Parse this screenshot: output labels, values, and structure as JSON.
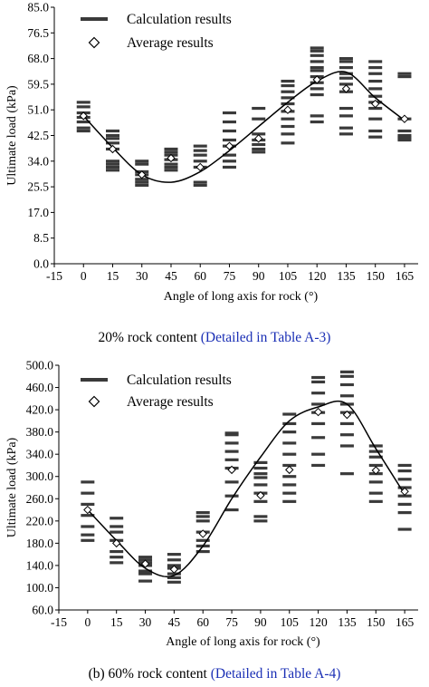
{
  "chart_data": [
    {
      "type": "scatter",
      "title": "",
      "xlabel": "Angle of long axis for rock (°)",
      "ylabel": "Ultimate load (kPa)",
      "xlim": [
        -15,
        172
      ],
      "ylim": [
        0,
        85
      ],
      "x_ticks": [
        -15,
        0,
        15,
        30,
        45,
        60,
        75,
        90,
        105,
        120,
        135,
        150,
        165
      ],
      "y_ticks": [
        "0.0",
        "8.5",
        "17.0",
        "25.5",
        "34.0",
        "42.5",
        "51.0",
        "59.5",
        "68.0",
        "76.5",
        "85.0"
      ],
      "legend": {
        "position": "top-left",
        "items": [
          {
            "label": "Calculation results",
            "marker": "dash"
          },
          {
            "label": "Average results",
            "marker": "diamond"
          }
        ]
      },
      "x": [
        0,
        15,
        30,
        45,
        60,
        75,
        90,
        105,
        120,
        135,
        150,
        165
      ],
      "series": [
        {
          "name": "Calculation results",
          "values": [
            [
              44,
              45,
              47,
              48.5,
              50,
              52,
              53.5
            ],
            [
              31,
              32,
              33,
              34,
              38,
              40,
              41.5,
              42.5,
              44
            ],
            [
              26,
              27,
              28,
              29.5,
              30.5,
              33,
              34
            ],
            [
              31,
              32,
              33,
              34.5,
              36,
              37,
              38
            ],
            [
              26,
              27,
              32,
              34,
              36,
              37.5,
              39
            ],
            [
              32,
              34,
              36,
              39,
              41,
              44,
              47,
              50
            ],
            [
              37,
              38,
              39.5,
              41,
              43,
              48,
              51.5
            ],
            [
              40,
              43,
              45.5,
              48,
              50.5,
              53,
              55,
              57,
              59,
              60.5
            ],
            [
              47,
              49,
              56,
              58,
              60,
              62,
              64,
              65,
              67,
              69,
              70.5,
              71.5
            ],
            [
              43,
              45,
              49,
              51.5,
              57,
              59.5,
              61.5,
              63,
              65,
              67,
              68
            ],
            [
              42,
              44,
              48,
              51.5,
              53.5,
              55.5,
              58,
              60.5,
              63,
              65,
              67
            ],
            [
              41,
              41.5,
              42,
              42.5,
              44,
              48,
              62,
              63
            ]
          ]
        },
        {
          "name": "Average results",
          "values": [
            49,
            38,
            29.5,
            35,
            32,
            39,
            41.5,
            51,
            61,
            58,
            53,
            48
          ]
        },
        {
          "name": "Fitted curve",
          "values": [
            49,
            38.5,
            29.5,
            27,
            30.5,
            37.5,
            45.5,
            53.5,
            60.5,
            63.5,
            55,
            47.5
          ]
        }
      ]
    },
    {
      "type": "scatter",
      "title": "",
      "xlabel": "Angle of long axis for rock (°)",
      "ylabel": "Ultimate load (kPa)",
      "xlim": [
        -15,
        172
      ],
      "ylim": [
        60,
        500
      ],
      "x_ticks": [
        -15,
        0,
        15,
        30,
        45,
        60,
        75,
        90,
        105,
        120,
        135,
        150,
        165
      ],
      "y_ticks": [
        "60.0",
        "100.0",
        "140.0",
        "180.0",
        "220.0",
        "260.0",
        "300.0",
        "340.0",
        "380.0",
        "420.0",
        "460.0",
        "500.0"
      ],
      "legend": {
        "position": "top-left",
        "items": [
          {
            "label": "Calculation results",
            "marker": "dash"
          },
          {
            "label": "Average results",
            "marker": "diamond"
          }
        ]
      },
      "x": [
        0,
        15,
        30,
        45,
        60,
        75,
        90,
        105,
        120,
        135,
        150,
        165
      ],
      "series": [
        {
          "name": "Calculation results",
          "values": [
            [
              185,
              195,
              210,
              230,
              250,
              270,
              290
            ],
            [
              145,
              155,
              165,
              185,
              200,
              210,
              225
            ],
            [
              112,
              125,
              130,
              140,
              145,
              150,
              155
            ],
            [
              110,
              118,
              125,
              135,
              140,
              150,
              160
            ],
            [
              165,
              175,
              185,
              200,
              220,
              228,
              235
            ],
            [
              240,
              265,
              290,
              315,
              330,
              345,
              360,
              375,
              378
            ],
            [
              220,
              228,
              255,
              270,
              285,
              298,
              305,
              315,
              325
            ],
            [
              255,
              270,
              285,
              300,
              320,
              340,
              360,
              380,
              395,
              412
            ],
            [
              320,
              340,
              370,
              395,
              415,
              430,
              450,
              470,
              478
            ],
            [
              305,
              355,
              375,
              395,
              415,
              430,
              445,
              465,
              480,
              488
            ],
            [
              255,
              270,
              290,
              305,
              320,
              335,
              345,
              355
            ],
            [
              205,
              235,
              250,
              265,
              280,
              295,
              310,
              320
            ]
          ]
        },
        {
          "name": "Average results",
          "values": [
            240,
            180,
            143,
            133,
            197,
            312,
            266,
            312,
            416,
            411,
            311,
            273
          ]
        },
        {
          "name": "Fitted curve",
          "values": [
            240,
            185,
            135,
            122,
            175,
            260,
            335,
            400,
            425,
            430,
            350,
            268
          ]
        }
      ]
    }
  ],
  "captions": {
    "chart1_main": "20% rock content",
    "chart1_link": "(Detailed in Table A-3)",
    "chart2_main": "(b) 60% rock content",
    "chart2_link": "(Detailed in Table A-4)"
  }
}
